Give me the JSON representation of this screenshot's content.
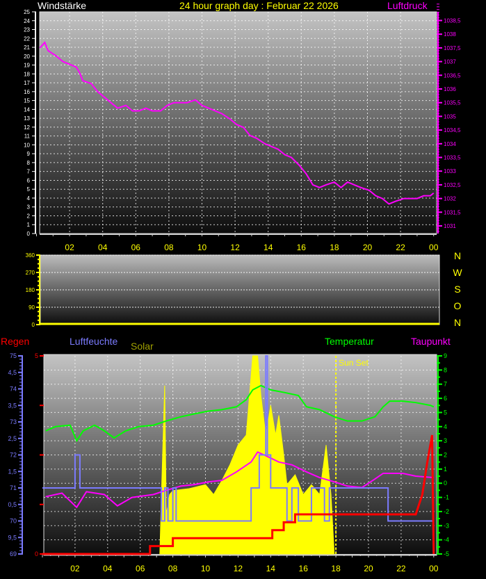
{
  "title": "24 hour graph day : Februar 22 2026",
  "colors": {
    "wind": "#ffffff",
    "pressure": "#ff00ff",
    "title": "#ffff00",
    "rain": "#ff0000",
    "humidity": "#7b7bff",
    "solar": "#ffff00",
    "solar_label": "#a0a000",
    "temperature": "#00ff00",
    "dewpoint": "#ff00ff",
    "direction": "#ffff00"
  },
  "chart_data": [
    {
      "type": "line",
      "title": "24 hour graph day : Februar 22 2026",
      "left_label": "Windstärke",
      "right_label": "Luftdruck",
      "x_ticks": [
        "02",
        "04",
        "06",
        "08",
        "10",
        "12",
        "14",
        "16",
        "18",
        "20",
        "22",
        "00"
      ],
      "xlim": [
        0,
        24
      ],
      "left_ylim": [
        0,
        25
      ],
      "left_ticks": [
        "0",
        "1",
        "2",
        "3",
        "4",
        "5",
        "6",
        "7",
        "8",
        "9",
        "10",
        "11",
        "12",
        "13",
        "14",
        "15",
        "16",
        "17",
        "18",
        "19",
        "20",
        "21",
        "22",
        "23",
        "24",
        "25"
      ],
      "right_ylim": [
        1030.8,
        1039.1
      ],
      "right_ticks": [
        "1031",
        "1031,5",
        "1032",
        "1032,5",
        "1033",
        "1033,5",
        "1034",
        "1034,5",
        "1035",
        "1035,5",
        "1036",
        "1036,5",
        "1037",
        "1037,5",
        "1038",
        "1038,5"
      ],
      "grid": true,
      "series": [
        {
          "name": "Luftdruck",
          "axis": "right",
          "x": [
            0.2,
            0.5,
            0.7,
            1.2,
            1.6,
            2.0,
            2.4,
            2.6,
            2.8,
            3.3,
            3.7,
            4.1,
            4.5,
            4.9,
            5.4,
            5.8,
            6.2,
            6.6,
            7.0,
            7.5,
            7.9,
            8.3,
            8.7,
            9.1,
            9.6,
            10.0,
            10.4,
            10.8,
            11.2,
            11.7,
            12.1,
            12.5,
            12.9,
            13.3,
            13.8,
            14.2,
            14.6,
            15.0,
            15.4,
            15.9,
            16.3,
            16.7,
            17.1,
            17.5,
            18.0,
            18.4,
            18.8,
            19.2,
            19.6,
            20.1,
            20.5,
            20.9,
            21.3,
            21.7,
            22.2,
            22.6,
            23.0,
            23.4,
            23.8,
            24.0
          ],
          "y": [
            1037.5,
            1037.7,
            1037.4,
            1037.2,
            1037.0,
            1036.9,
            1036.8,
            1036.6,
            1036.3,
            1036.2,
            1035.9,
            1035.7,
            1035.5,
            1035.3,
            1035.4,
            1035.2,
            1035.2,
            1035.3,
            1035.2,
            1035.2,
            1035.4,
            1035.5,
            1035.5,
            1035.5,
            1035.6,
            1035.4,
            1035.3,
            1035.2,
            1035.1,
            1034.9,
            1034.7,
            1034.6,
            1034.3,
            1034.2,
            1034.0,
            1033.9,
            1033.8,
            1033.6,
            1033.5,
            1033.2,
            1032.9,
            1032.5,
            1032.4,
            1032.5,
            1032.6,
            1032.4,
            1032.6,
            1032.5,
            1032.4,
            1032.3,
            1032.1,
            1032.0,
            1031.8,
            1031.9,
            1032.0,
            1032.0,
            1032.0,
            1032.1,
            1032.1,
            1032.2
          ]
        }
      ]
    },
    {
      "type": "line",
      "compass_labels": [
        "N",
        "W",
        "S",
        "O",
        "N"
      ],
      "ylim": [
        0,
        360
      ],
      "y_ticks": [
        "0",
        "90",
        "180",
        "270",
        "360"
      ],
      "xlim": [
        0,
        24
      ],
      "grid": true,
      "series": [
        {
          "x": [
            0,
            24
          ],
          "y": [
            0,
            0
          ]
        }
      ]
    },
    {
      "type": "line",
      "labels": {
        "rain": "Regen",
        "humidity": "Luftfeuchte",
        "solar": "Solar",
        "temperature": "Temperatur",
        "dewpoint": "Taupunkt"
      },
      "x_ticks": [
        "02",
        "04",
        "06",
        "08",
        "10",
        "12",
        "14",
        "16",
        "18",
        "20",
        "22",
        "00"
      ],
      "xlim": [
        0,
        24
      ],
      "humidity_ylim": [
        69,
        75
      ],
      "humidity_ticks": [
        "69",
        "9,5",
        "70",
        "0,5",
        "71",
        "1,5",
        "72",
        "2,5",
        "73",
        "3,5",
        "74",
        "4,5",
        "75"
      ],
      "rain_ylim": [
        0,
        5
      ],
      "rain_ticks": [
        "0",
        "5"
      ],
      "temp_ylim": [
        -5,
        9
      ],
      "temp_ticks": [
        "-5",
        "-4",
        "-3",
        "-2",
        "-1",
        "0",
        "1",
        "2",
        "3",
        "4",
        "5",
        "6",
        "7",
        "8",
        "9"
      ],
      "sunset_label": "Sun Set",
      "sunset_hour": 18.0,
      "grid": true,
      "series": [
        {
          "name": "Temperatur",
          "x": [
            0.2,
            0.8,
            1.7,
            2.1,
            2.5,
            3.2,
            3.8,
            4.4,
            5.1,
            5.9,
            6.8,
            7.6,
            8.5,
            9.3,
            10.2,
            11.0,
            11.9,
            12.5,
            12.9,
            13.4,
            14.0,
            14.9,
            15.7,
            16.2,
            17.0,
            17.9,
            18.7,
            19.6,
            20.4,
            20.9,
            21.3,
            22.1,
            22.9,
            23.8,
            24.0
          ],
          "y": [
            3.7,
            4.0,
            4.1,
            3.0,
            3.7,
            4.1,
            3.7,
            3.2,
            3.7,
            4.0,
            4.1,
            4.4,
            4.7,
            4.9,
            5.1,
            5.2,
            5.4,
            5.9,
            6.6,
            6.9,
            6.6,
            6.4,
            6.2,
            5.4,
            5.2,
            4.7,
            4.4,
            4.4,
            4.7,
            5.4,
            5.8,
            5.8,
            5.7,
            5.5,
            5.4
          ]
        },
        {
          "name": "Taupunkt",
          "x": [
            0.2,
            1.2,
            2.1,
            2.7,
            3.8,
            4.6,
            5.5,
            6.8,
            7.6,
            8.5,
            9.3,
            10.2,
            11.0,
            11.9,
            12.8,
            13.2,
            13.6,
            14.5,
            15.3,
            16.2,
            17.0,
            17.9,
            18.7,
            19.6,
            20.4,
            20.9,
            22.1,
            22.9,
            24.0
          ],
          "y": [
            -0.95,
            -0.7,
            -1.7,
            -0.6,
            -0.8,
            -1.6,
            -1.0,
            -0.8,
            -0.5,
            -0.2,
            -0.1,
            0.1,
            0.2,
            0.8,
            1.5,
            2.2,
            2.0,
            1.5,
            1.3,
            0.8,
            0.4,
            0.1,
            -0.2,
            -0.3,
            0.3,
            0.7,
            0.7,
            0.5,
            0.4
          ]
        },
        {
          "name": "Luftfeuchte",
          "step": true,
          "x": [
            0,
            2.0,
            2.3,
            7.3,
            7.5,
            7.7,
            8.0,
            8.2,
            12.8,
            13.3,
            13.7,
            13.8,
            14.0,
            15.0,
            15.3,
            15.7,
            16.5,
            17.3,
            17.6,
            21.2,
            24.0
          ],
          "y": [
            71,
            72,
            71,
            70,
            71,
            70,
            71,
            70,
            71,
            72,
            75,
            72,
            71,
            70,
            71,
            70,
            71,
            70,
            71,
            70,
            70
          ]
        },
        {
          "name": "Regen",
          "x": [
            0,
            6.6,
            6.6,
            8.0,
            8.0,
            14.1,
            14.1,
            14.8,
            14.8,
            15.5,
            15.5,
            22.9,
            23.3,
            23.6,
            23.9,
            24.0
          ],
          "y": [
            0,
            0,
            0.2,
            0.2,
            0.4,
            0.4,
            0.6,
            0.6,
            0.8,
            0.8,
            1.0,
            1.0,
            1.5,
            2.3,
            3.0,
            0
          ]
        },
        {
          "name": "Solar",
          "type": "area",
          "level_fraction": true,
          "x": [
            7.2,
            7.3,
            7.5,
            7.6,
            7.8,
            8.0,
            9.0,
            10.0,
            10.5,
            11.0,
            11.5,
            12.0,
            12.5,
            12.9,
            13.2,
            13.4,
            13.7,
            14.0,
            14.3,
            14.5,
            14.8,
            15.0,
            15.5,
            16.0,
            16.5,
            17.0,
            17.4,
            17.7,
            17.9
          ],
          "y": [
            0,
            0.3,
            0.85,
            0.2,
            0.3,
            0.32,
            0.33,
            0.35,
            0.3,
            0.37,
            0.45,
            0.55,
            0.6,
            1.0,
            1.0,
            0.8,
            0.6,
            0.75,
            0.6,
            0.7,
            0.5,
            0.35,
            0.4,
            0.3,
            0.35,
            0.3,
            0.55,
            0.3,
            0
          ]
        }
      ]
    }
  ]
}
